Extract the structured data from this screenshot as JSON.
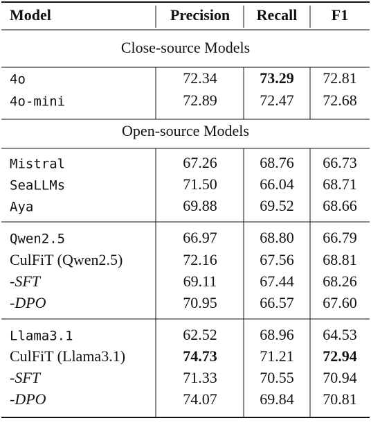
{
  "header": [
    "Model",
    "Precision",
    "Recall",
    "F1"
  ],
  "sections": [
    {
      "title": "Close-source Models",
      "groups": [
        [
          [
            "4o",
            "72.34",
            "73.29",
            "72.81"
          ],
          [
            "4o-mini",
            "72.89",
            "72.47",
            "72.68"
          ]
        ]
      ]
    },
    {
      "title": "Open-source Models",
      "groups": [
        [
          [
            "Mistral",
            "67.26",
            "68.76",
            "66.73"
          ],
          [
            "SeaLLMs",
            "71.50",
            "66.04",
            "68.71"
          ],
          [
            "Aya",
            "69.88",
            "69.52",
            "68.66"
          ]
        ],
        [
          [
            "Qwen2.5",
            "66.97",
            "68.80",
            "66.79"
          ],
          [
            "CulFiT (Qwen2.5)",
            "72.16",
            "67.56",
            "68.81"
          ],
          [
            "-SFT",
            "69.11",
            "67.44",
            "68.26"
          ],
          [
            "-DPO",
            "70.95",
            "66.57",
            "67.60"
          ]
        ],
        [
          [
            "Llama3.1",
            "62.52",
            "68.96",
            "64.53"
          ],
          [
            "CulFiT (Llama3.1)",
            "74.73",
            "71.21",
            "72.94"
          ],
          [
            "-SFT",
            "71.33",
            "70.55",
            "70.94"
          ],
          [
            "-DPO",
            "74.07",
            "69.84",
            "70.81"
          ]
        ]
      ]
    }
  ]
}
